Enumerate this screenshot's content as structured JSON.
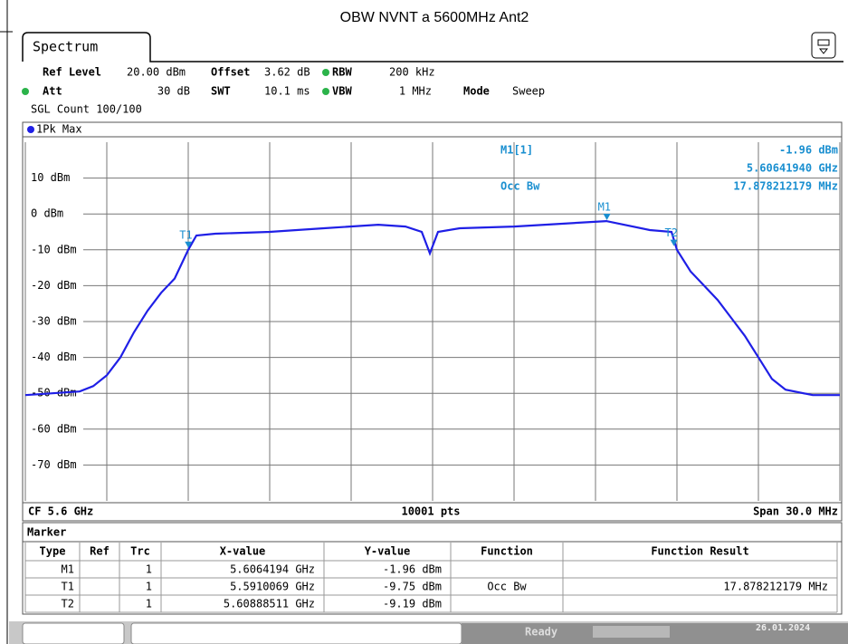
{
  "title": "OBW NVNT a 5600MHz Ant2",
  "tab": "Spectrum",
  "settings": {
    "row1": [
      "Ref Level",
      "20.00 dBm",
      "Offset",
      "3.62 dB",
      "RBW",
      "200 kHz"
    ],
    "row2": [
      "Att",
      "30 dB",
      "SWT",
      "10.1 ms",
      "VBW",
      "1 MHz",
      "Mode",
      "Sweep"
    ],
    "row3": "SGL Count 100/100"
  },
  "trace_label": "1Pk Max",
  "marker_info": {
    "name": "M1[1]",
    "level": "-1.96 dBm",
    "freq": "5.60641940 GHz",
    "function": "Occ Bw",
    "result": "17.878212179 MHz"
  },
  "chart_data": {
    "type": "line",
    "xlim": [
      5585,
      5615
    ],
    "ylim": [
      -80,
      20
    ],
    "xticks": [
      5585,
      5588,
      5591,
      5594,
      5597,
      5600,
      5603,
      5606,
      5609,
      5612,
      5615
    ],
    "yticks": [
      {
        "value": 10,
        "label": "10 dBm"
      },
      {
        "value": 0,
        "label": "0 dBm"
      },
      {
        "value": -10,
        "label": "-10 dBm"
      },
      {
        "value": -20,
        "label": "-20 dBm"
      },
      {
        "value": -30,
        "label": "-30 dBm"
      },
      {
        "value": -40,
        "label": "-40 dBm"
      },
      {
        "value": -50,
        "label": "-50 dBm"
      },
      {
        "value": -60,
        "label": "-60 dBm"
      },
      {
        "value": -70,
        "label": "-70 dBm"
      }
    ],
    "grid": true,
    "series": [
      {
        "name": "1Pk Max",
        "color": "#1f1fe6",
        "x": [
          5585,
          5586,
          5587,
          5587.5,
          5588,
          5588.5,
          5589,
          5589.5,
          5590,
          5590.5,
          5591,
          5591.3,
          5592,
          5594,
          5596,
          5598,
          5599,
          5599.6,
          5599.9,
          5600.2,
          5601,
          5603,
          5606.4,
          5608,
          5608.8,
          5609,
          5609.5,
          5610,
          5610.5,
          5611,
          5611.5,
          5612,
          5612.5,
          5613,
          5614,
          5615
        ],
        "values": [
          -50.5,
          -50,
          -49.5,
          -48,
          -45,
          -40,
          -33,
          -27,
          -22,
          -18,
          -10,
          -6,
          -5.5,
          -5,
          -4,
          -3,
          -3.5,
          -5,
          -11,
          -5,
          -4,
          -3.5,
          -2,
          -4.5,
          -5,
          -10,
          -16,
          -20,
          -24,
          -29,
          -34,
          -40,
          -46,
          -49,
          -50.5,
          -50.5
        ]
      }
    ],
    "markers": [
      {
        "name": "T1",
        "x": 5591.0069,
        "y": -9.75
      },
      {
        "name": "M1",
        "x": 5606.4194,
        "y": -1.96
      },
      {
        "name": "T2",
        "x": 5608.88511,
        "y": -9.19
      }
    ]
  },
  "bottom_bar": [
    "CF 5.6 GHz",
    "10001 pts",
    "Span 30.0 MHz"
  ],
  "marker_table": {
    "caption": "Marker",
    "columns": [
      "Type",
      "Ref",
      "Trc",
      "X-value",
      "Y-value",
      "Function",
      "Function Result"
    ],
    "rows": [
      [
        "M1",
        null,
        "1",
        "5.6064194 GHz",
        "-1.96 dBm",
        null,
        null
      ],
      [
        "T1",
        null,
        "1",
        "5.5910069 GHz",
        "-9.75 dBm",
        "Occ Bw",
        "17.878212179 MHz"
      ],
      [
        "T2",
        null,
        "1",
        "5.60888511 GHz",
        "-9.19 dBm",
        null,
        null
      ]
    ]
  },
  "status": {
    "state": "Ready",
    "date": "26.01.2024"
  }
}
